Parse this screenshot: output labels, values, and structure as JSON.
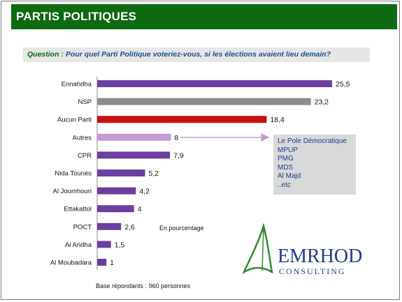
{
  "header": {
    "title": "PARTIS POLITIQUES"
  },
  "question": {
    "label": "Question :",
    "text": "Pour quel Parti Politique voteriez-vous, si les élections avaient lieu demain?"
  },
  "chart_data": {
    "type": "bar",
    "orientation": "horizontal",
    "categories": [
      "Ennahdha",
      "NSP",
      "Aucun Parti",
      "Autres",
      "CPR",
      "Nida Tounès",
      "Al Joumhouri",
      "Ettakattol",
      "POCT",
      "Al Aridha",
      "Al Moubadara"
    ],
    "values": [
      25.5,
      23.2,
      18.4,
      8,
      7.9,
      5.2,
      4.2,
      4,
      2.6,
      1.5,
      1
    ],
    "value_labels": [
      "25,5",
      "23,2",
      "18,4",
      "8",
      "7,9",
      "5,2",
      "4,2",
      "4",
      "2,6",
      "1,5",
      "1"
    ],
    "colors": [
      "#6a3fa0",
      "#8c8c8c",
      "#cc1111",
      "#c79ad6",
      "#6a3fa0",
      "#6a3fa0",
      "#6a3fa0",
      "#6a3fa0",
      "#6a3fa0",
      "#6a3fa0",
      "#6a3fa0"
    ],
    "xlim": [
      0,
      25.5
    ],
    "grid": false,
    "legend": false,
    "unit_note": "En pourcentage"
  },
  "others": {
    "items": [
      "Le Pole Démocratique",
      "MPUP",
      "PMG",
      "MDS",
      "Al Majd",
      "..etc"
    ]
  },
  "footer": {
    "base": "Base répondants : 960  personnes"
  },
  "logo": {
    "name": "EMRHOD",
    "subtitle": "CONSULTING"
  }
}
